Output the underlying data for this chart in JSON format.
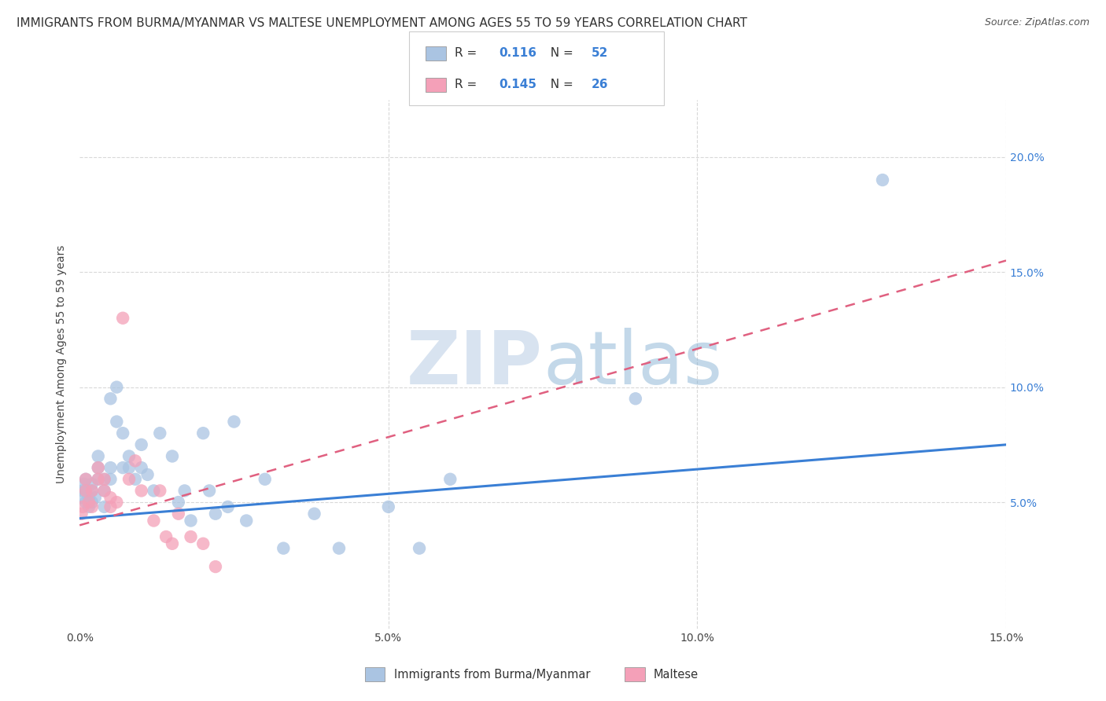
{
  "title": "IMMIGRANTS FROM BURMA/MYANMAR VS MALTESE UNEMPLOYMENT AMONG AGES 55 TO 59 YEARS CORRELATION CHART",
  "source": "Source: ZipAtlas.com",
  "ylabel": "Unemployment Among Ages 55 to 59 years",
  "xlim": [
    0,
    0.15
  ],
  "ylim": [
    -0.005,
    0.225
  ],
  "legend_label1": "Immigrants from Burma/Myanmar",
  "legend_label2": "Maltese",
  "watermark": "ZIPatlas",
  "blue_color": "#aac4e2",
  "pink_color": "#f4a0b8",
  "blue_line_color": "#3a7fd5",
  "pink_line_color": "#e06080",
  "background_color": "#ffffff",
  "grid_color": "#d8d8d8",
  "R1": "0.116",
  "N1": "52",
  "R2": "0.145",
  "N2": "26",
  "blue_scatter_x": [
    0.0003,
    0.0005,
    0.0007,
    0.001,
    0.001,
    0.001,
    0.0015,
    0.0015,
    0.002,
    0.002,
    0.002,
    0.0025,
    0.003,
    0.003,
    0.003,
    0.004,
    0.004,
    0.004,
    0.005,
    0.005,
    0.005,
    0.006,
    0.006,
    0.007,
    0.007,
    0.008,
    0.008,
    0.009,
    0.01,
    0.01,
    0.011,
    0.012,
    0.013,
    0.015,
    0.016,
    0.017,
    0.018,
    0.02,
    0.021,
    0.022,
    0.024,
    0.025,
    0.027,
    0.03,
    0.033,
    0.038,
    0.042,
    0.05,
    0.055,
    0.06,
    0.09,
    0.13
  ],
  "blue_scatter_y": [
    0.052,
    0.055,
    0.058,
    0.05,
    0.055,
    0.06,
    0.048,
    0.052,
    0.05,
    0.055,
    0.058,
    0.052,
    0.06,
    0.065,
    0.07,
    0.048,
    0.055,
    0.06,
    0.06,
    0.065,
    0.095,
    0.1,
    0.085,
    0.08,
    0.065,
    0.065,
    0.07,
    0.06,
    0.065,
    0.075,
    0.062,
    0.055,
    0.08,
    0.07,
    0.05,
    0.055,
    0.042,
    0.08,
    0.055,
    0.045,
    0.048,
    0.085,
    0.042,
    0.06,
    0.03,
    0.045,
    0.03,
    0.048,
    0.03,
    0.06,
    0.095,
    0.19
  ],
  "pink_scatter_x": [
    0.0003,
    0.0005,
    0.001,
    0.001,
    0.0015,
    0.002,
    0.002,
    0.003,
    0.003,
    0.004,
    0.004,
    0.005,
    0.005,
    0.006,
    0.007,
    0.008,
    0.009,
    0.01,
    0.012,
    0.013,
    0.014,
    0.015,
    0.016,
    0.018,
    0.02,
    0.022
  ],
  "pink_scatter_y": [
    0.045,
    0.048,
    0.055,
    0.06,
    0.05,
    0.048,
    0.055,
    0.06,
    0.065,
    0.055,
    0.06,
    0.048,
    0.052,
    0.05,
    0.13,
    0.06,
    0.068,
    0.055,
    0.042,
    0.055,
    0.035,
    0.032,
    0.045,
    0.035,
    0.032,
    0.022
  ],
  "blue_line_x": [
    0.0,
    0.15
  ],
  "blue_line_y": [
    0.043,
    0.075
  ],
  "pink_line_x": [
    0.0,
    0.15
  ],
  "pink_line_y": [
    0.04,
    0.155
  ],
  "marker_size": 140,
  "title_fontsize": 11,
  "axis_fontsize": 10,
  "tick_fontsize": 10,
  "value_color": "#3a7fd5"
}
